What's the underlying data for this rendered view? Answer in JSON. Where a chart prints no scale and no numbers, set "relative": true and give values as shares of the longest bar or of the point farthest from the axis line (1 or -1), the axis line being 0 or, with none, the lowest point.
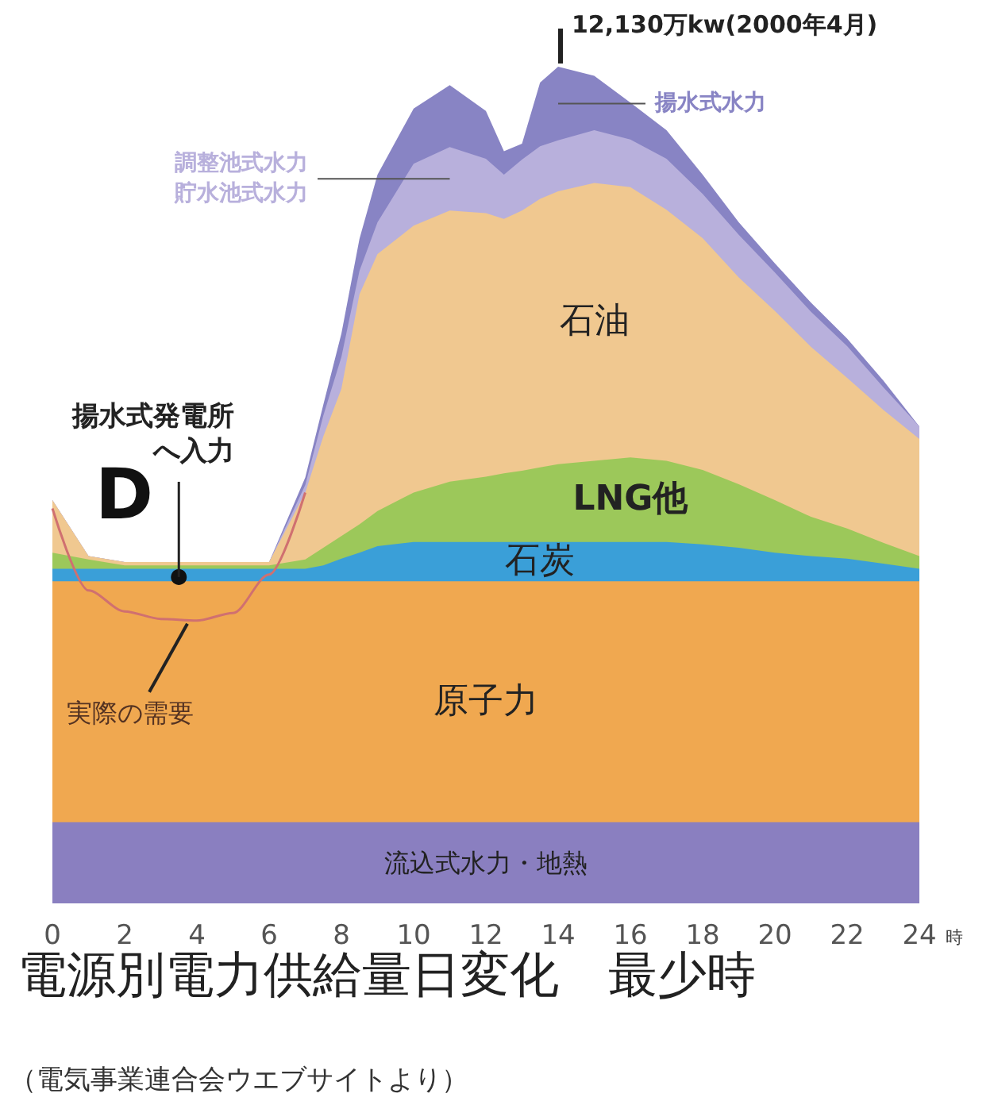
{
  "chart_data": {
    "type": "area",
    "stacked": true,
    "relative": true,
    "title": "電源別電力供給量日変化　最少時",
    "xlabel": "時",
    "x": [
      0,
      1,
      2,
      3,
      4,
      5,
      6,
      7,
      7.5,
      8,
      8.5,
      9,
      10,
      11,
      12,
      12.5,
      13,
      13.5,
      14,
      15,
      16,
      17,
      18,
      19,
      20,
      21,
      22,
      23,
      24
    ],
    "xlim": [
      0,
      24
    ],
    "xticks": [
      0,
      2,
      4,
      6,
      8,
      10,
      12,
      14,
      16,
      18,
      20,
      22,
      24
    ],
    "series": [
      {
        "name": "流込式水力・地熱",
        "color": "#8a7fc0",
        "values": [
          0.097,
          0.097,
          0.097,
          0.097,
          0.097,
          0.097,
          0.097,
          0.097,
          0.097,
          0.097,
          0.097,
          0.097,
          0.097,
          0.097,
          0.097,
          0.097,
          0.097,
          0.097,
          0.097,
          0.097,
          0.097,
          0.097,
          0.097,
          0.097,
          0.097,
          0.097,
          0.097,
          0.097,
          0.097
        ]
      },
      {
        "name": "原子力",
        "color": "#f0a850",
        "values": [
          0.288,
          0.288,
          0.288,
          0.288,
          0.288,
          0.288,
          0.288,
          0.288,
          0.288,
          0.288,
          0.288,
          0.288,
          0.288,
          0.288,
          0.288,
          0.288,
          0.288,
          0.288,
          0.288,
          0.288,
          0.288,
          0.288,
          0.288,
          0.288,
          0.288,
          0.288,
          0.288,
          0.288,
          0.288
        ]
      },
      {
        "name": "石炭",
        "color": "#3a9fd8",
        "values": [
          0.015,
          0.015,
          0.015,
          0.015,
          0.015,
          0.015,
          0.015,
          0.015,
          0.019,
          0.027,
          0.034,
          0.042,
          0.047,
          0.047,
          0.047,
          0.047,
          0.047,
          0.047,
          0.047,
          0.047,
          0.047,
          0.047,
          0.044,
          0.04,
          0.034,
          0.03,
          0.027,
          0.021,
          0.015
        ]
      },
      {
        "name": "LNG他",
        "color": "#9cc85a",
        "values": [
          0.019,
          0.011,
          0.004,
          0.004,
          0.004,
          0.004,
          0.004,
          0.011,
          0.021,
          0.027,
          0.034,
          0.042,
          0.059,
          0.072,
          0.078,
          0.082,
          0.085,
          0.089,
          0.093,
          0.097,
          0.101,
          0.097,
          0.089,
          0.076,
          0.063,
          0.047,
          0.036,
          0.025,
          0.015
        ]
      },
      {
        "name": "石油",
        "color": "#f0c890",
        "values": [
          0.063,
          0.004,
          0.004,
          0.004,
          0.004,
          0.004,
          0.004,
          0.08,
          0.133,
          0.176,
          0.275,
          0.307,
          0.319,
          0.324,
          0.315,
          0.304,
          0.311,
          0.321,
          0.326,
          0.332,
          0.323,
          0.3,
          0.277,
          0.247,
          0.226,
          0.203,
          0.18,
          0.159,
          0.14
        ]
      },
      {
        "name": "調整池式水力貯水池式水力",
        "color": "#b8b0dc",
        "values": [
          0,
          0,
          0,
          0,
          0,
          0,
          0,
          0.009,
          0.025,
          0.038,
          0.028,
          0.038,
          0.074,
          0.076,
          0.065,
          0.053,
          0.061,
          0.063,
          0.061,
          0.063,
          0.057,
          0.061,
          0.053,
          0.051,
          0.046,
          0.042,
          0.038,
          0.027,
          0.015
        ]
      },
      {
        "name": "揚水式水力",
        "color": "#8884c4",
        "values": [
          0,
          0,
          0,
          0,
          0,
          0,
          0,
          0.009,
          0.013,
          0.028,
          0.038,
          0.057,
          0.066,
          0.074,
          0.057,
          0.028,
          0.019,
          0.076,
          0.088,
          0.065,
          0.044,
          0.034,
          0.023,
          0.015,
          0.011,
          0.011,
          0.009,
          0.008,
          0
        ]
      },
      {
        "type": "line",
        "name": "実際の需要",
        "color": "#d07070",
        "x": [
          0,
          1,
          2,
          3,
          4,
          5,
          6,
          7
        ],
        "values": [
          0.472,
          0.374,
          0.349,
          0.34,
          0.338,
          0.347,
          0.393,
          0.491
        ]
      }
    ],
    "annotations": [
      "12,130万kw(2000年4月)",
      {
        "text": "揚水式発電所へ入力",
        "x": 3.5,
        "y": 0.39
      },
      "D",
      "（電気事業連合会ウエブサイトより）"
    ]
  }
}
